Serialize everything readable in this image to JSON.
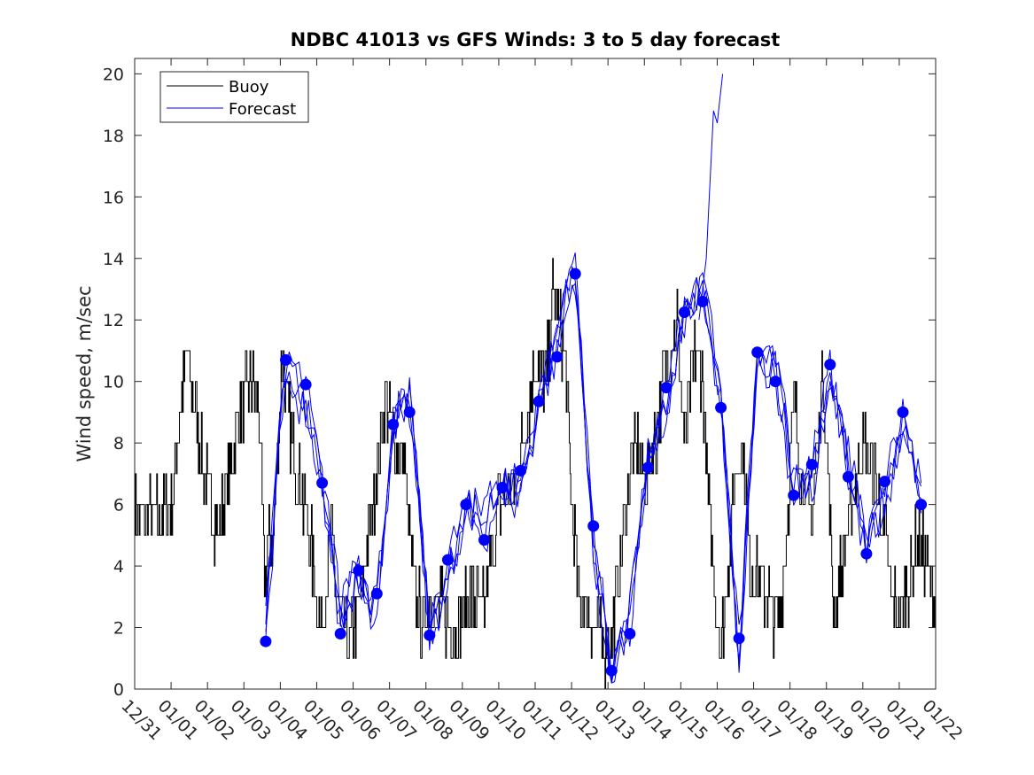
{
  "chart_data": {
    "type": "line",
    "title": "NDBC 41013 vs GFS Winds: 3 to 5 day forecast",
    "xlabel": "",
    "ylabel": "Wind speed, m/sec",
    "xlim": [
      0,
      22
    ],
    "ylim": [
      0,
      20.5
    ],
    "yticks": [
      0,
      2,
      4,
      6,
      8,
      10,
      12,
      14,
      16,
      18,
      20
    ],
    "xtick_labels": [
      "12/31",
      "01/01",
      "01/02",
      "01/03",
      "01/04",
      "01/05",
      "01/06",
      "01/07",
      "01/08",
      "01/09",
      "01/10",
      "01/11",
      "01/12",
      "01/13",
      "01/14",
      "01/15",
      "01/16",
      "01/17",
      "01/18",
      "01/19",
      "01/20",
      "01/21",
      "01/22"
    ],
    "legend": {
      "location": "top-left",
      "entries": [
        "Buoy",
        "Forecast"
      ]
    },
    "colors": {
      "buoy": "#000000",
      "forecast": "#0000ff",
      "markers": "#0000ff"
    },
    "buoy_daily_anchors": {
      "x": [
        0,
        0.5,
        1.0,
        1.4,
        1.9,
        2.3,
        2.8,
        3.1,
        3.4,
        3.55,
        3.8,
        4.05,
        4.3,
        4.8,
        5.1,
        5.4,
        5.6,
        5.9,
        6.1,
        6.3,
        6.6,
        6.9,
        7.1,
        7.4,
        7.6,
        7.9,
        8.1,
        8.5,
        8.8,
        9.2,
        9.6,
        10.0,
        10.4,
        10.8,
        11.0,
        11.3,
        11.5,
        11.8,
        12.0,
        12.2,
        12.5,
        12.8,
        13.1,
        13.4,
        13.6,
        13.8,
        14.0,
        14.3,
        14.6,
        14.9,
        15.1,
        15.4,
        15.6,
        15.8,
        16.1,
        16.3,
        16.5,
        16.7,
        16.9,
        17.1,
        17.4,
        17.7,
        17.9,
        18.1,
        18.3,
        18.6,
        18.9,
        19.2,
        19.4,
        19.7,
        20.0,
        20.3,
        20.6,
        20.8,
        21.0,
        21.3,
        21.5,
        21.8,
        22.0
      ],
      "y": [
        6,
        5.5,
        6,
        11,
        7,
        5,
        8.5,
        10,
        9.5,
        4,
        5,
        11,
        8,
        5,
        2,
        5,
        2.5,
        1.5,
        2.5,
        4,
        6.5,
        9.5,
        8,
        7.5,
        4,
        2,
        3,
        2.5,
        2,
        3,
        2.5,
        6,
        6.5,
        9,
        10.5,
        10,
        13,
        11,
        6,
        3,
        2.5,
        1.5,
        1.5,
        5,
        7,
        8,
        6.5,
        8,
        11,
        12,
        8,
        11,
        10,
        5,
        1.5,
        4,
        7,
        8,
        4,
        3.5,
        3,
        2,
        5,
        9.5,
        7,
        5.5,
        10.5,
        2.5,
        4,
        6,
        8,
        7,
        5,
        3,
        2.5,
        3.5,
        5,
        4,
        2.5
      ]
    },
    "markers": {
      "x": [
        3.6,
        4.15,
        4.7,
        5.15,
        5.65,
        6.15,
        6.65,
        7.1,
        7.55,
        8.1,
        8.6,
        9.1,
        9.6,
        10.1,
        10.6,
        11.1,
        11.6,
        12.1,
        12.6,
        13.1,
        13.6,
        14.1,
        14.6,
        15.1,
        15.6,
        16.1,
        16.6,
        17.1,
        17.6,
        18.1,
        18.6,
        19.1,
        19.6,
        20.1,
        20.6,
        21.1,
        21.6
      ],
      "y": [
        1.55,
        10.7,
        9.9,
        6.7,
        1.8,
        3.85,
        3.1,
        8.6,
        9.0,
        1.75,
        4.2,
        6.0,
        4.85,
        6.55,
        7.1,
        9.35,
        10.8,
        13.5,
        5.3,
        0.6,
        1.8,
        7.2,
        9.8,
        12.25,
        12.6,
        9.15,
        1.65,
        10.95,
        10.0,
        6.3,
        7.3,
        10.55,
        6.9,
        4.4,
        6.75,
        9.0,
        6.0
      ]
    },
    "forecast_segment_offsets": [
      0.25,
      0.75
    ],
    "forecast_segment_deltas": [
      0.3,
      -0.4
    ]
  }
}
